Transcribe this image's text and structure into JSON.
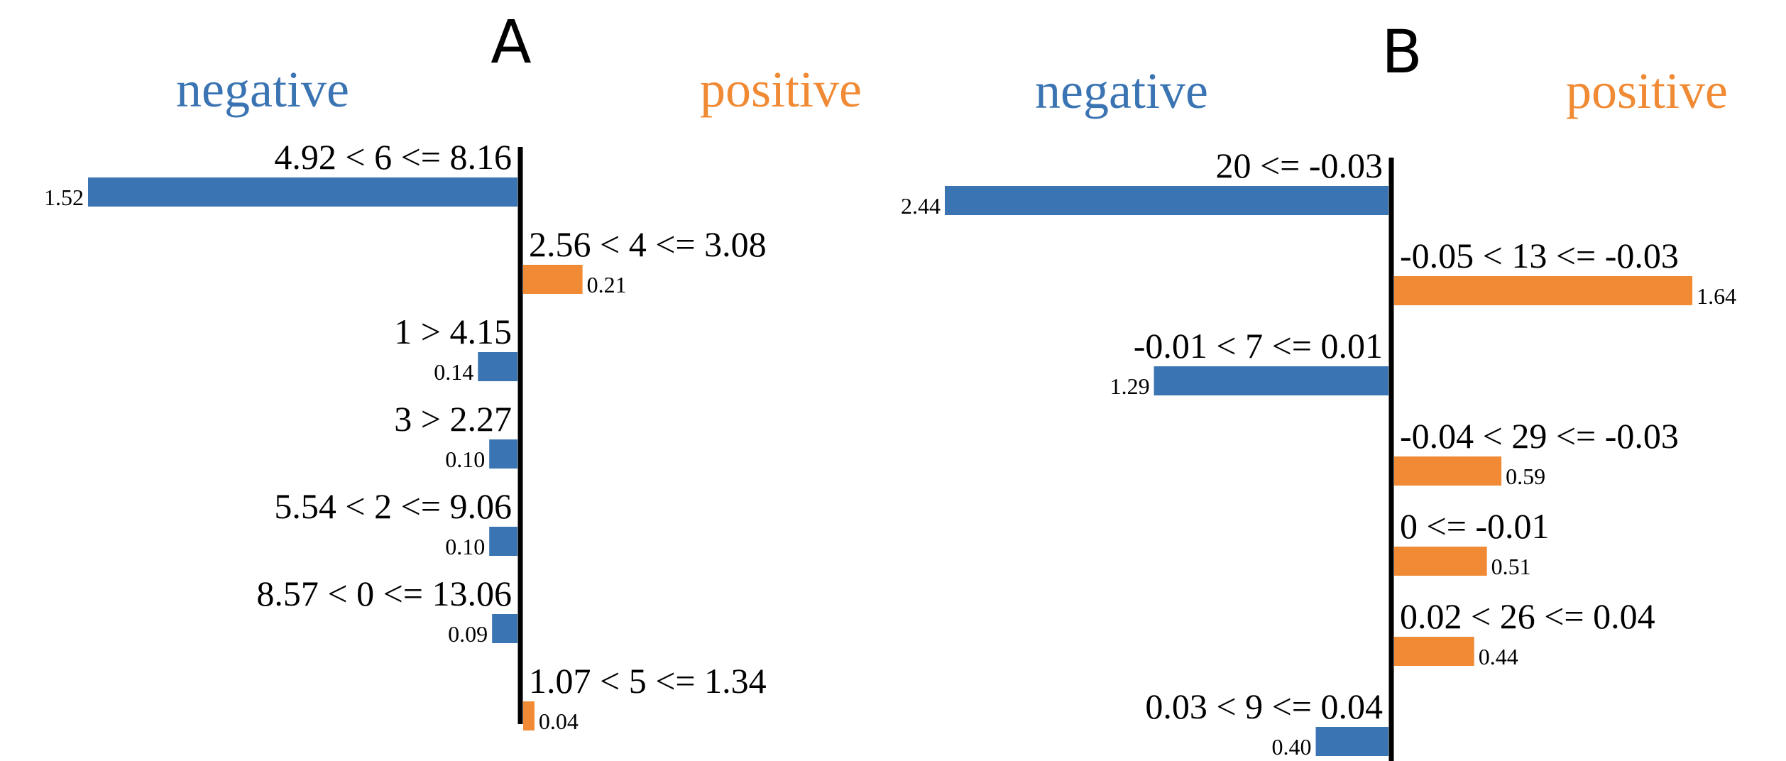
{
  "colors": {
    "negative": "#3b74b2",
    "positive": "#f08a34",
    "axis": "#000000"
  },
  "chart_data": [
    {
      "type": "bar",
      "panel": "A",
      "orientation": "horizontal-diverging",
      "labels": {
        "negative": "negative",
        "positive": "positive"
      },
      "max_abs": 1.52,
      "rows": [
        {
          "condition": "4.92 < 6 <= 8.16",
          "weight": 1.52,
          "value_label": "1.52",
          "side": "negative"
        },
        {
          "condition": "2.56 < 4 <= 3.08",
          "weight": 0.21,
          "value_label": "0.21",
          "side": "positive"
        },
        {
          "condition": "1 > 4.15",
          "weight": 0.14,
          "value_label": "0.14",
          "side": "negative"
        },
        {
          "condition": "3 > 2.27",
          "weight": 0.1,
          "value_label": "0.10",
          "side": "negative"
        },
        {
          "condition": "5.54 < 2 <= 9.06",
          "weight": 0.1,
          "value_label": "0.10",
          "side": "negative"
        },
        {
          "condition": "8.57 < 0 <= 13.06",
          "weight": 0.09,
          "value_label": "0.09",
          "side": "negative"
        },
        {
          "condition": "1.07 < 5 <= 1.34",
          "weight": 0.04,
          "value_label": "0.04",
          "side": "positive"
        }
      ]
    },
    {
      "type": "bar",
      "panel": "B",
      "orientation": "horizontal-diverging",
      "labels": {
        "negative": "negative",
        "positive": "positive"
      },
      "max_abs": 2.44,
      "rows": [
        {
          "condition": "20 <= -0.03",
          "weight": 2.44,
          "value_label": "2.44",
          "side": "negative"
        },
        {
          "condition": "-0.05 < 13 <= -0.03",
          "weight": 1.64,
          "value_label": "1.64",
          "side": "positive"
        },
        {
          "condition": "-0.01 < 7 <= 0.01",
          "weight": 1.29,
          "value_label": "1.29",
          "side": "negative"
        },
        {
          "condition": "-0.04 < 29 <= -0.03",
          "weight": 0.59,
          "value_label": "0.59",
          "side": "positive"
        },
        {
          "condition": "0 <= -0.01",
          "weight": 0.51,
          "value_label": "0.51",
          "side": "positive"
        },
        {
          "condition": "0.02 < 26 <= 0.04",
          "weight": 0.44,
          "value_label": "0.44",
          "side": "positive"
        },
        {
          "condition": "0.03 < 9 <= 0.04",
          "weight": 0.4,
          "value_label": "0.40",
          "side": "negative"
        }
      ]
    }
  ]
}
